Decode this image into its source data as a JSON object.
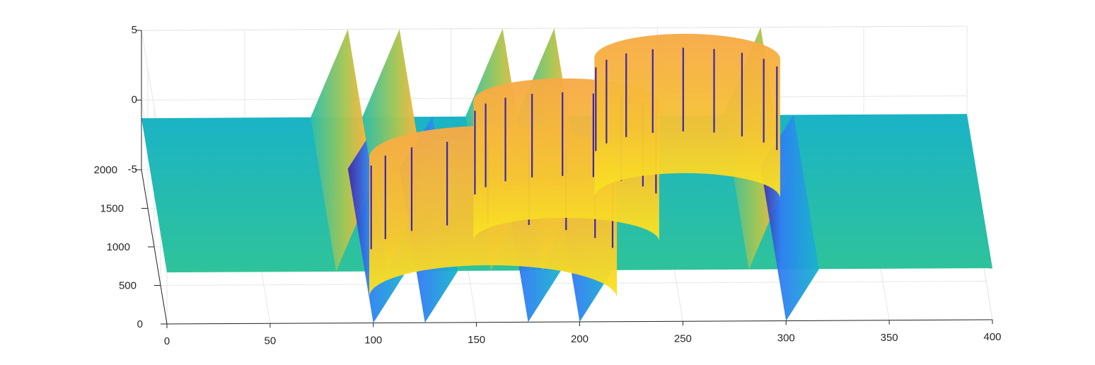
{
  "chart_data": {
    "type": "surface",
    "title": "",
    "xlabel": "",
    "ylabel": "",
    "zlabel": "",
    "xlim": [
      0,
      400
    ],
    "ylim": [
      0,
      2000
    ],
    "zlim": [
      -5,
      5
    ],
    "grid": true,
    "colormap": "parula",
    "x_ticks": [
      "0",
      "50",
      "100",
      "150",
      "200",
      "250",
      "300",
      "350",
      "400"
    ],
    "y_ticks": [
      "0",
      "500",
      "1000",
      "1500",
      "2000"
    ],
    "z_ticks": [
      "-5",
      "0",
      "5"
    ],
    "base_level": -1.3,
    "poles_x": [
      100,
      125,
      175,
      200,
      300
    ],
    "colors": {
      "parula_dark": "#3e26a8",
      "parula_blue": "#2f7ff3",
      "parula_teal": "#12bec0",
      "parula_green": "#48cb86",
      "parula_orange": "#f9b63a",
      "parula_yellow": "#f9fb0e"
    }
  }
}
